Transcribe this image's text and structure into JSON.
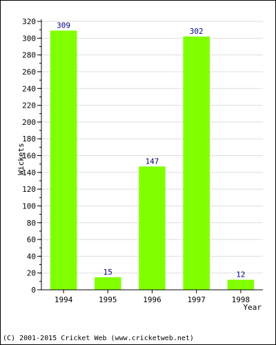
{
  "chart_data": {
    "type": "bar",
    "categories": [
      "1994",
      "1995",
      "1996",
      "1997",
      "1998"
    ],
    "values": [
      309,
      15,
      147,
      302,
      12
    ],
    "xlabel": "Year",
    "ylabel": "Wickets",
    "ylim": [
      0,
      320
    ],
    "yticks": [
      0,
      20,
      40,
      60,
      80,
      100,
      120,
      140,
      160,
      180,
      200,
      220,
      240,
      260,
      280,
      300,
      320
    ],
    "grid": true,
    "bar_color": "#80ff00",
    "value_label_color": "#000080",
    "grid_color": "#dddddd"
  },
  "footer": {
    "copyright": "(C) 2001-2015 Cricket Web (www.cricketweb.net)"
  }
}
